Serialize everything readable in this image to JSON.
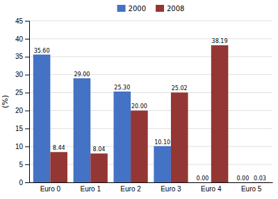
{
  "chart_data": {
    "type": "bar",
    "categories": [
      "Euro 0",
      "Euro 1",
      "Euro 2",
      "Euro 3",
      "Euro 4",
      "Euro 5"
    ],
    "series": [
      {
        "name": "2000",
        "color": "#4472C4",
        "values": [
          35.6,
          29.0,
          25.3,
          10.1,
          0.0,
          0.0
        ],
        "value_labels": [
          "35.60",
          "29.00",
          "25.30",
          "10.10",
          "0.00",
          "0.00"
        ]
      },
      {
        "name": "2008",
        "color": "#943634",
        "values": [
          8.44,
          8.04,
          20.0,
          25.02,
          38.19,
          0.03
        ],
        "value_labels": [
          "8.44",
          "8.04",
          "20.00",
          "25.02",
          "38.19",
          "0.03"
        ]
      }
    ],
    "ylabel": "(%)",
    "ylim": [
      0,
      45
    ],
    "yticks": [
      0,
      5,
      10,
      15,
      20,
      25,
      30,
      35,
      40,
      45
    ],
    "grid": true,
    "legend": "top",
    "data_labels": true
  }
}
